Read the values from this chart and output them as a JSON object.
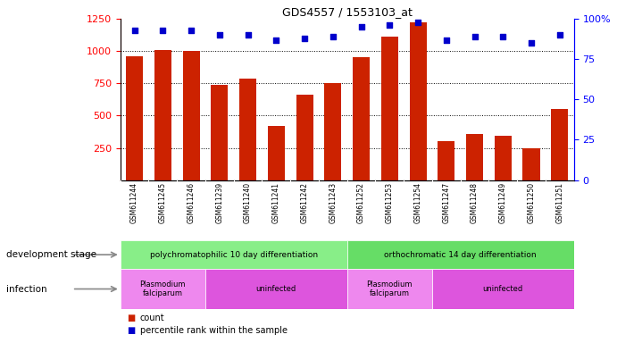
{
  "title": "GDS4557 / 1553103_at",
  "samples": [
    "GSM611244",
    "GSM611245",
    "GSM611246",
    "GSM611239",
    "GSM611240",
    "GSM611241",
    "GSM611242",
    "GSM611243",
    "GSM611252",
    "GSM611253",
    "GSM611254",
    "GSM611247",
    "GSM611248",
    "GSM611249",
    "GSM611250",
    "GSM611251"
  ],
  "counts": [
    960,
    1005,
    1000,
    740,
    790,
    420,
    660,
    750,
    950,
    1110,
    1220,
    305,
    360,
    345,
    248,
    550
  ],
  "percentile_ranks": [
    93,
    93,
    93,
    90,
    90,
    87,
    88,
    89,
    95,
    96,
    98,
    87,
    89,
    89,
    85,
    90
  ],
  "count_min": 0,
  "count_max": 1250,
  "count_ticks": [
    250,
    500,
    750,
    1000,
    1250
  ],
  "pct_ticks": [
    0,
    25,
    50,
    75,
    100
  ],
  "pct_tick_labels": [
    "0",
    "25",
    "50",
    "75",
    "100%"
  ],
  "bar_color": "#cc2200",
  "dot_color": "#0000cc",
  "xtick_bg_color": "#cccccc",
  "dev_stage_groups": [
    {
      "label": "polychromatophilic 10 day differentiation",
      "start": 0,
      "end": 7,
      "color": "#88ee88"
    },
    {
      "label": "orthochromatic 14 day differentiation",
      "start": 8,
      "end": 15,
      "color": "#66dd66"
    }
  ],
  "infection_groups": [
    {
      "label": "Plasmodium\nfalciparum",
      "start": 0,
      "end": 2,
      "color": "#ee88ee"
    },
    {
      "label": "uninfected",
      "start": 3,
      "end": 7,
      "color": "#dd55dd"
    },
    {
      "label": "Plasmodium\nfalciparum",
      "start": 8,
      "end": 10,
      "color": "#ee88ee"
    },
    {
      "label": "uninfected",
      "start": 11,
      "end": 15,
      "color": "#dd55dd"
    }
  ],
  "legend_count_label": "count",
  "legend_pct_label": "percentile rank within the sample",
  "dev_stage_label": "development stage",
  "infection_label": "infection"
}
